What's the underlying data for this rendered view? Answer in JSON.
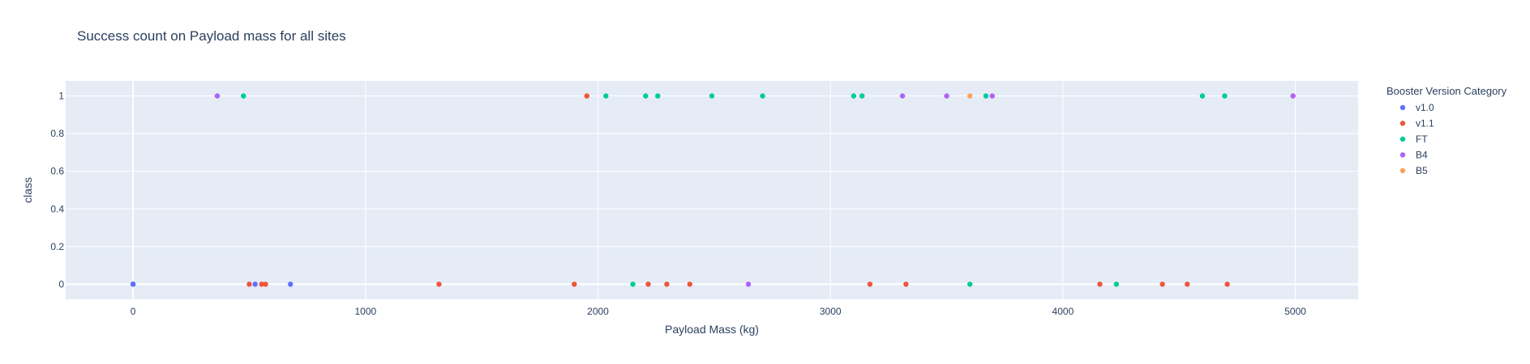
{
  "chart_data": {
    "type": "scatter",
    "title": "Success count on Payload mass for all sites",
    "xlabel": "Payload Mass (kg)",
    "ylabel": "class",
    "xlim": [
      -290,
      5270
    ],
    "ylim": [
      -0.08,
      1.08
    ],
    "x_ticks": [
      0,
      1000,
      2000,
      3000,
      4000,
      5000
    ],
    "y_ticks": [
      0,
      0.2,
      0.4,
      0.6,
      0.8,
      1
    ],
    "grid": true,
    "legend": {
      "title": "Booster Version Category",
      "placement": "top-right outside"
    },
    "series": [
      {
        "name": "v1.0",
        "color": "#636efa",
        "points": [
          [
            0,
            0
          ],
          [
            0,
            0
          ],
          [
            525,
            0
          ],
          [
            677,
            0
          ]
        ]
      },
      {
        "name": "v1.1",
        "color": "#ef553b",
        "points": [
          [
            500,
            0
          ],
          [
            553,
            0
          ],
          [
            570,
            0
          ],
          [
            1316,
            0
          ],
          [
            1898,
            0
          ],
          [
            1952,
            1
          ],
          [
            2216,
            0
          ],
          [
            2296,
            0
          ],
          [
            2395,
            0
          ],
          [
            3170,
            0
          ],
          [
            3325,
            0
          ],
          [
            4159,
            0
          ],
          [
            4428,
            0
          ],
          [
            4535,
            0
          ],
          [
            4707,
            0
          ]
        ]
      },
      {
        "name": "FT",
        "color": "#00cc96",
        "points": [
          [
            475,
            1
          ],
          [
            2034,
            1
          ],
          [
            2150,
            0
          ],
          [
            2205,
            1
          ],
          [
            2257,
            1
          ],
          [
            2490,
            1
          ],
          [
            2708,
            1
          ],
          [
            3100,
            1
          ],
          [
            3136,
            1
          ],
          [
            3600,
            0
          ],
          [
            3669,
            1
          ],
          [
            4230,
            0
          ],
          [
            4600,
            1
          ],
          [
            4696,
            1
          ]
        ]
      },
      {
        "name": "B4",
        "color": "#ab63fa",
        "points": [
          [
            362,
            1
          ],
          [
            2647,
            0
          ],
          [
            3310,
            1
          ],
          [
            3500,
            1
          ],
          [
            3696,
            1
          ],
          [
            4990,
            1
          ]
        ]
      },
      {
        "name": "B5",
        "color": "#ffa15a",
        "points": [
          [
            3600,
            1
          ]
        ]
      }
    ]
  }
}
